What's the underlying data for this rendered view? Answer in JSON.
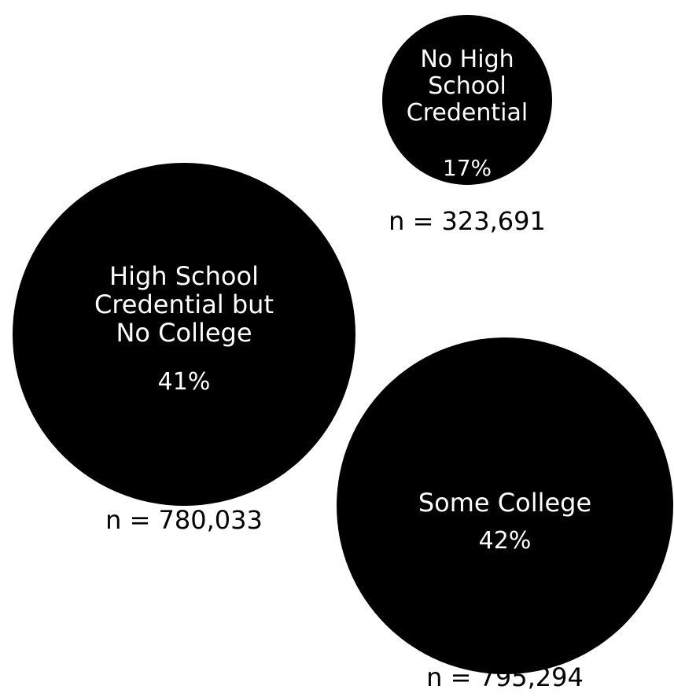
{
  "chart_data": {
    "type": "bubble",
    "title": "",
    "bubble_color": "#000000",
    "text_color": "#ffffff",
    "count_label_color": "#000000",
    "series": [
      {
        "label_lines": [
          "No High",
          "School",
          "Credential"
        ],
        "percent": 17,
        "percent_label": "17%",
        "n": 323691,
        "n_label": "n = 323,691"
      },
      {
        "label_lines": [
          "High School",
          "Credential but",
          "No College"
        ],
        "percent": 41,
        "percent_label": "41%",
        "n": 780033,
        "n_label": "n = 780,033"
      },
      {
        "label_lines": [
          "Some College"
        ],
        "percent": 42,
        "percent_label": "42%",
        "n": 795294,
        "n_label": "n = 795,294"
      }
    ]
  }
}
